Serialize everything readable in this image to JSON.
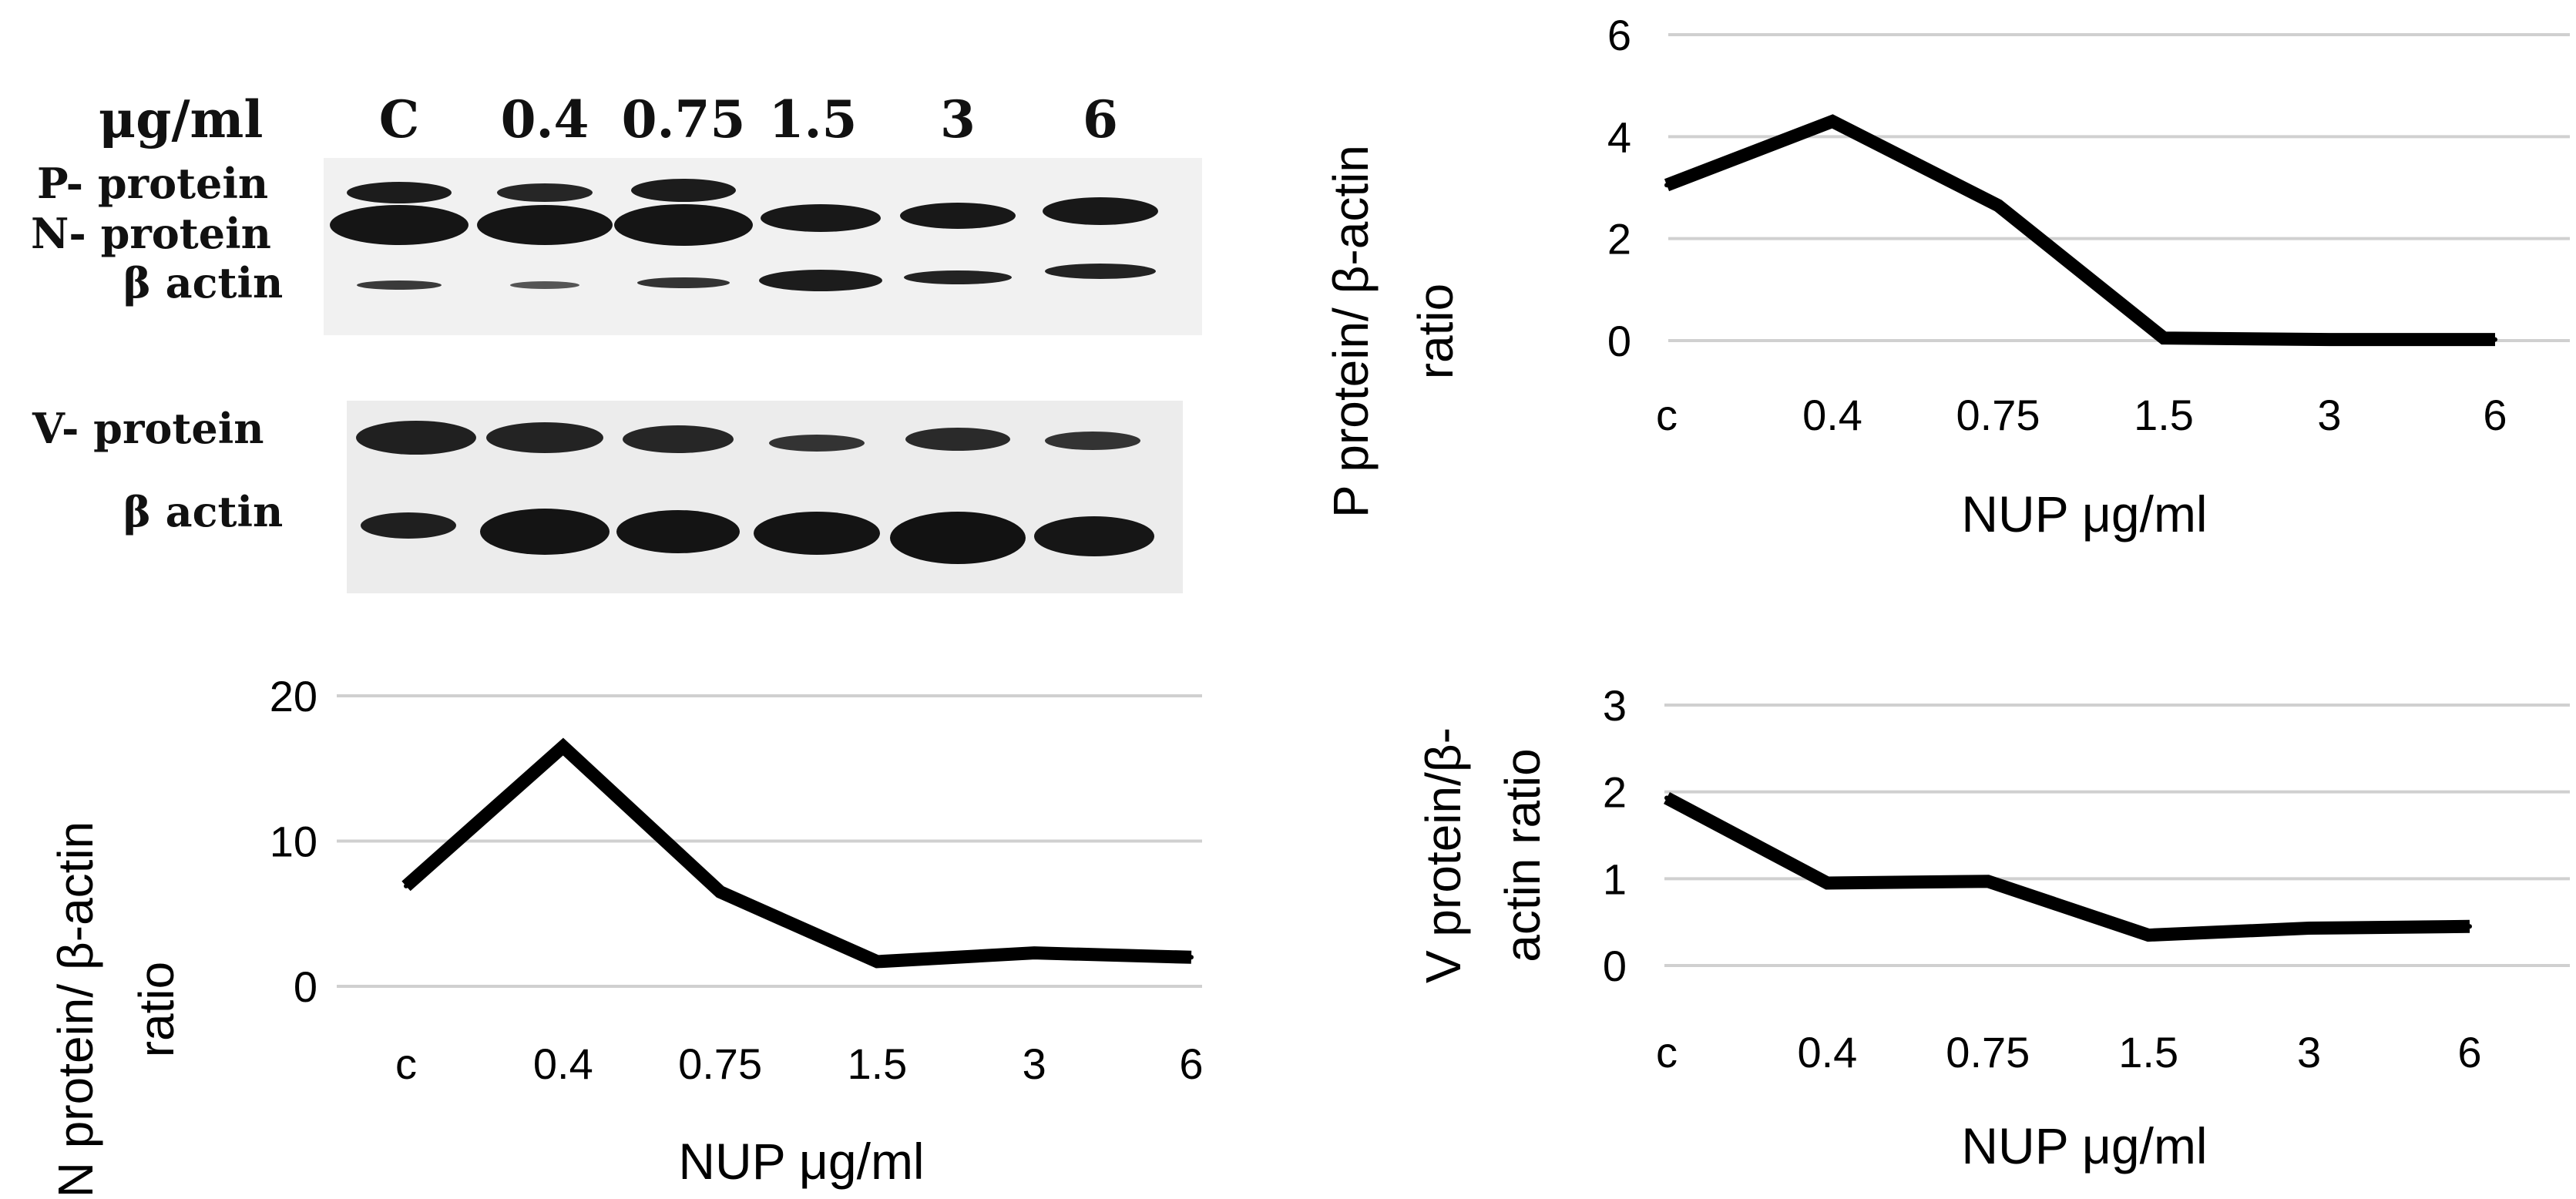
{
  "blot": {
    "unit_label": "μg/ml",
    "lanes": [
      "C",
      "0.4",
      "0.75",
      "1.5",
      "3",
      "6"
    ],
    "top_rows": [
      "P- protein",
      "N- protein",
      "β actin"
    ],
    "bottom_rows": [
      "V- protein",
      "β actin"
    ]
  },
  "chart_data": [
    {
      "type": "line",
      "title": "",
      "categories": [
        "c",
        "0.4",
        "0.75",
        "1.5",
        "3",
        "6"
      ],
      "series": [
        {
          "values": [
            3.05,
            4.3,
            2.65,
            0.05,
            0.02,
            0.02
          ]
        }
      ],
      "xlabel": "NUP μg/ml",
      "ylabel": "P protein/ β-actin ratio",
      "ylabel_lines": [
        "P protein/ β-actin",
        "ratio"
      ],
      "ylim": [
        0,
        6
      ],
      "yticks": [
        0,
        2,
        4,
        6
      ],
      "grid": true,
      "legend": "none"
    },
    {
      "type": "line",
      "title": "",
      "categories": [
        "c",
        "0.4",
        "0.75",
        "1.5",
        "3",
        "6"
      ],
      "series": [
        {
          "values": [
            6.9,
            16.5,
            6.5,
            1.7,
            2.3,
            2.0
          ]
        }
      ],
      "xlabel": "NUP μg/ml",
      "ylabel": "N protein/ β-actin ratio",
      "ylabel_lines": [
        "N protein/ β-actin",
        "ratio"
      ],
      "ylim": [
        0,
        20
      ],
      "yticks": [
        0,
        10,
        20
      ],
      "grid": true,
      "legend": "none"
    },
    {
      "type": "line",
      "title": "",
      "categories": [
        "c",
        "0.4",
        "0.75",
        "1.5",
        "3",
        "6"
      ],
      "series": [
        {
          "values": [
            1.93,
            0.95,
            0.97,
            0.35,
            0.43,
            0.45
          ]
        }
      ],
      "xlabel": "NUP μg/ml",
      "ylabel": "V protein/β-actin ratio",
      "ylabel_lines": [
        "V protein/β-",
        "actin ratio"
      ],
      "ylim": [
        0,
        3
      ],
      "yticks": [
        0,
        1,
        2,
        3
      ],
      "grid": true,
      "legend": "none"
    }
  ]
}
